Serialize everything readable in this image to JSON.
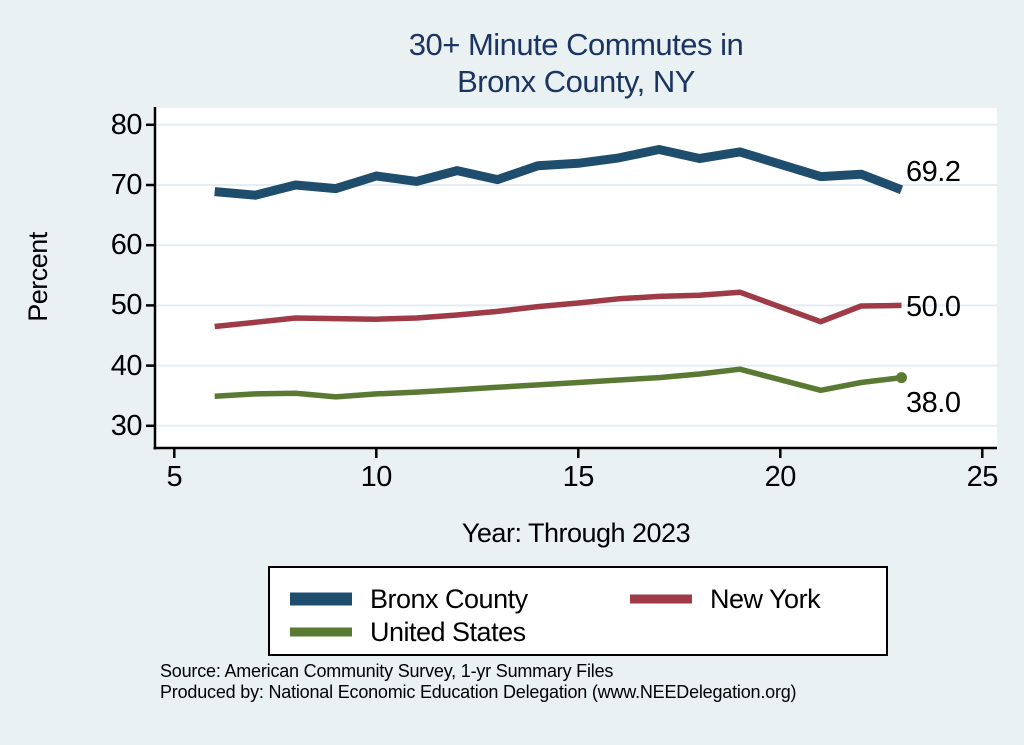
{
  "page": {
    "background": "#eaf1f3",
    "plot_background": "#ffffff",
    "gridline_color": "#e4edf2",
    "axis_color": "#000000"
  },
  "chart_data": {
    "type": "line",
    "title_lines": [
      "30+ Minute Commutes in",
      "Bronx County, NY"
    ],
    "title_color": "#1c3461",
    "ylabel": "Percent",
    "xlabel": "Year: Through 2023",
    "x_ticks": [
      5,
      10,
      15,
      20,
      25
    ],
    "y_ticks": [
      30,
      40,
      50,
      60,
      70,
      80
    ],
    "xlim": [
      4.5,
      25.3
    ],
    "ylim": [
      26.3,
      83.0
    ],
    "grid": true,
    "legend_position": "bottom",
    "note": "x axis is year minus 2000; no data point for 2020 (line drawn straight from 19 to 21)",
    "series": [
      {
        "name": "Bronx County",
        "color": "#1f4d6e",
        "line_width": 9,
        "end_label": "69.2",
        "end_marker": false,
        "x": [
          6,
          7,
          8,
          9,
          10,
          11,
          12,
          13,
          14,
          15,
          16,
          17,
          18,
          19,
          21,
          22,
          23
        ],
        "values": [
          68.9,
          68.3,
          70.0,
          69.4,
          71.5,
          70.6,
          72.4,
          70.9,
          73.2,
          73.6,
          74.5,
          75.9,
          74.4,
          75.5,
          71.4,
          71.8,
          69.2
        ]
      },
      {
        "name": "New York",
        "color": "#9e3b47",
        "line_width": 5.5,
        "end_label": "50.0",
        "end_marker": false,
        "x": [
          6,
          7,
          8,
          9,
          10,
          11,
          12,
          13,
          14,
          15,
          16,
          17,
          18,
          19,
          21,
          22,
          23
        ],
        "values": [
          46.5,
          47.2,
          47.9,
          47.8,
          47.7,
          47.9,
          48.4,
          49.0,
          49.8,
          50.4,
          51.1,
          51.5,
          51.7,
          52.2,
          47.3,
          49.9,
          50.0
        ]
      },
      {
        "name": "United States",
        "color": "#5a7a33",
        "line_width": 5.5,
        "end_label": "38.0",
        "end_marker": true,
        "x": [
          6,
          7,
          8,
          9,
          10,
          11,
          12,
          13,
          14,
          15,
          16,
          17,
          18,
          19,
          21,
          22,
          23
        ],
        "values": [
          34.9,
          35.3,
          35.4,
          34.8,
          35.3,
          35.6,
          36.0,
          36.4,
          36.8,
          37.2,
          37.6,
          38.0,
          38.6,
          39.4,
          35.9,
          37.2,
          38.0
        ]
      }
    ]
  },
  "source": {
    "line1": "Source: American Community Survey, 1-yr Summary Files",
    "line2": "Produced by: National Economic Education Delegation (www.NEEDelegation.org)"
  }
}
